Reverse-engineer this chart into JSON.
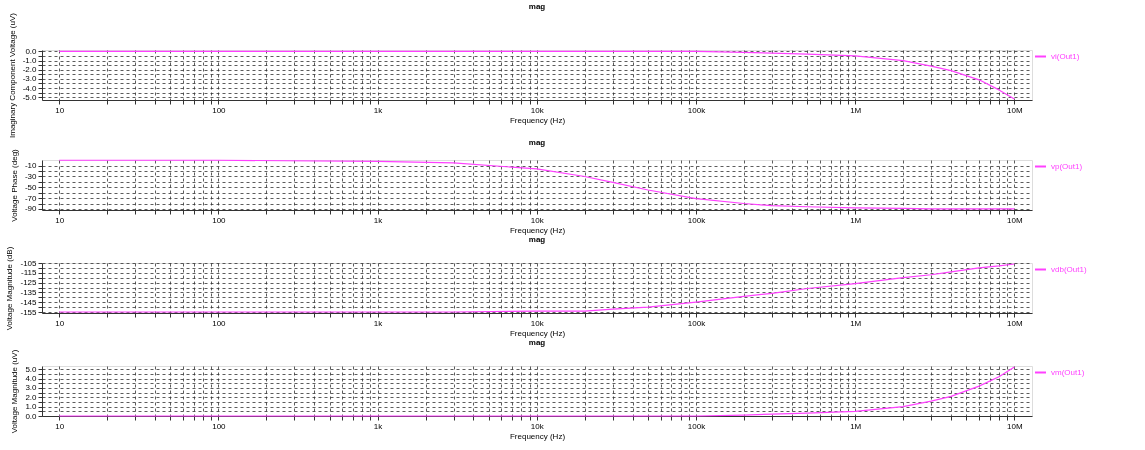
{
  "chart_data": [
    {
      "type": "line",
      "title": "mag",
      "xlabel": "Frequency (Hz)",
      "ylabel": "Imaginary Component Voltage (uV)",
      "log": "x",
      "grid": true,
      "legend": "right",
      "x": [
        10,
        100,
        1000,
        3000,
        10000,
        20000,
        30000,
        50000,
        100000,
        200000,
        300000,
        500000,
        1000000,
        2000000,
        3000000,
        4000000,
        6000000,
        8000000,
        10000000
      ],
      "series": [
        {
          "name": "vi(Out1)",
          "color": "#ff40ff",
          "values": [
            0.0,
            0.0,
            0.0,
            0.0,
            0.0,
            0.0,
            0.0,
            0.0,
            0.0,
            -0.1,
            -0.2,
            -0.3,
            -0.5,
            -1.0,
            -1.6,
            -2.1,
            -3.1,
            -4.2,
            -5.2
          ]
        }
      ],
      "xlim": [
        7.8,
        12900000
      ],
      "xticks": [
        {
          "value": 10,
          "label": "10"
        },
        {
          "value": 20,
          "label": null
        },
        {
          "value": 30,
          "label": null
        },
        {
          "value": 40,
          "label": null
        },
        {
          "value": 50,
          "label": null
        },
        {
          "value": 60,
          "label": null
        },
        {
          "value": 70,
          "label": null
        },
        {
          "value": 80,
          "label": null
        },
        {
          "value": 90,
          "label": null
        },
        {
          "value": 100,
          "label": "100"
        },
        {
          "value": 200,
          "label": null
        },
        {
          "value": 300,
          "label": null
        },
        {
          "value": 400,
          "label": null
        },
        {
          "value": 500,
          "label": null
        },
        {
          "value": 600,
          "label": null
        },
        {
          "value": 700,
          "label": null
        },
        {
          "value": 800,
          "label": null
        },
        {
          "value": 900,
          "label": null
        },
        {
          "value": 1000,
          "label": "1k"
        },
        {
          "value": 2000,
          "label": null
        },
        {
          "value": 3000,
          "label": null
        },
        {
          "value": 4000,
          "label": null
        },
        {
          "value": 5000,
          "label": null
        },
        {
          "value": 6000,
          "label": null
        },
        {
          "value": 7000,
          "label": null
        },
        {
          "value": 8000,
          "label": null
        },
        {
          "value": 9000,
          "label": null
        },
        {
          "value": 10000,
          "label": "10k"
        },
        {
          "value": 20000,
          "label": null
        },
        {
          "value": 30000,
          "label": null
        },
        {
          "value": 40000,
          "label": null
        },
        {
          "value": 50000,
          "label": null
        },
        {
          "value": 60000,
          "label": null
        },
        {
          "value": 70000,
          "label": null
        },
        {
          "value": 80000,
          "label": null
        },
        {
          "value": 90000,
          "label": null
        },
        {
          "value": 100000,
          "label": "100k"
        },
        {
          "value": 200000,
          "label": null
        },
        {
          "value": 300000,
          "label": null
        },
        {
          "value": 400000,
          "label": null
        },
        {
          "value": 500000,
          "label": null
        },
        {
          "value": 600000,
          "label": null
        },
        {
          "value": 700000,
          "label": null
        },
        {
          "value": 800000,
          "label": null
        },
        {
          "value": 900000,
          "label": null
        },
        {
          "value": 1000000,
          "label": "1M"
        },
        {
          "value": 2000000,
          "label": null
        },
        {
          "value": 3000000,
          "label": null
        },
        {
          "value": 4000000,
          "label": null
        },
        {
          "value": 5000000,
          "label": null
        },
        {
          "value": 6000000,
          "label": null
        },
        {
          "value": 7000000,
          "label": null
        },
        {
          "value": 8000000,
          "label": null
        },
        {
          "value": 9000000,
          "label": null
        },
        {
          "value": 10000000,
          "label": "10M"
        }
      ],
      "ylim": [
        -5.3,
        0.15
      ],
      "yticks": [
        {
          "value": 0,
          "label": "0.0"
        },
        {
          "value": -0.5,
          "label": null
        },
        {
          "value": -1,
          "label": "-1.0"
        },
        {
          "value": -1.5,
          "label": null
        },
        {
          "value": -2,
          "label": "-2.0"
        },
        {
          "value": -2.5,
          "label": null
        },
        {
          "value": -3,
          "label": "-3.0"
        },
        {
          "value": -3.5,
          "label": null
        },
        {
          "value": -4,
          "label": "-4.0"
        },
        {
          "value": -4.5,
          "label": null
        },
        {
          "value": -5,
          "label": "-5.0"
        }
      ]
    },
    {
      "type": "line",
      "title": "mag",
      "xlabel": "Frequency (Hz)",
      "ylabel": "Voltage Phase (deg)",
      "log": "x",
      "grid": true,
      "legend": "right",
      "x": [
        10,
        100,
        1000,
        3000,
        10000,
        20000,
        30000,
        50000,
        100000,
        200000,
        300000,
        500000,
        1000000,
        2000000,
        3000000,
        4000000,
        6000000,
        8000000,
        10000000
      ],
      "series": [
        {
          "name": "vp(Out1)",
          "color": "#ff40ff",
          "values": [
            0,
            0,
            -2,
            -5,
            -16,
            -30,
            -41,
            -55,
            -71,
            -80,
            -84,
            -86,
            -88,
            -89,
            -90,
            -90,
            -90,
            -90,
            -90
          ]
        }
      ],
      "xlim": [
        7.8,
        12900000
      ],
      "xticks": [
        {
          "value": 10,
          "label": "10"
        },
        {
          "value": 20,
          "label": null
        },
        {
          "value": 30,
          "label": null
        },
        {
          "value": 40,
          "label": null
        },
        {
          "value": 50,
          "label": null
        },
        {
          "value": 60,
          "label": null
        },
        {
          "value": 70,
          "label": null
        },
        {
          "value": 80,
          "label": null
        },
        {
          "value": 90,
          "label": null
        },
        {
          "value": 100,
          "label": "100"
        },
        {
          "value": 200,
          "label": null
        },
        {
          "value": 300,
          "label": null
        },
        {
          "value": 400,
          "label": null
        },
        {
          "value": 500,
          "label": null
        },
        {
          "value": 600,
          "label": null
        },
        {
          "value": 700,
          "label": null
        },
        {
          "value": 800,
          "label": null
        },
        {
          "value": 900,
          "label": null
        },
        {
          "value": 1000,
          "label": "1k"
        },
        {
          "value": 2000,
          "label": null
        },
        {
          "value": 3000,
          "label": null
        },
        {
          "value": 4000,
          "label": null
        },
        {
          "value": 5000,
          "label": null
        },
        {
          "value": 6000,
          "label": null
        },
        {
          "value": 7000,
          "label": null
        },
        {
          "value": 8000,
          "label": null
        },
        {
          "value": 9000,
          "label": null
        },
        {
          "value": 10000,
          "label": "10k"
        },
        {
          "value": 20000,
          "label": null
        },
        {
          "value": 30000,
          "label": null
        },
        {
          "value": 40000,
          "label": null
        },
        {
          "value": 50000,
          "label": null
        },
        {
          "value": 60000,
          "label": null
        },
        {
          "value": 70000,
          "label": null
        },
        {
          "value": 80000,
          "label": null
        },
        {
          "value": 90000,
          "label": null
        },
        {
          "value": 100000,
          "label": "100k"
        },
        {
          "value": 200000,
          "label": null
        },
        {
          "value": 300000,
          "label": null
        },
        {
          "value": 400000,
          "label": null
        },
        {
          "value": 500000,
          "label": null
        },
        {
          "value": 600000,
          "label": null
        },
        {
          "value": 700000,
          "label": null
        },
        {
          "value": 800000,
          "label": null
        },
        {
          "value": 900000,
          "label": null
        },
        {
          "value": 1000000,
          "label": "1M"
        },
        {
          "value": 2000000,
          "label": null
        },
        {
          "value": 3000000,
          "label": null
        },
        {
          "value": 4000000,
          "label": null
        },
        {
          "value": 5000000,
          "label": null
        },
        {
          "value": 6000000,
          "label": null
        },
        {
          "value": 7000000,
          "label": null
        },
        {
          "value": 8000000,
          "label": null
        },
        {
          "value": 9000000,
          "label": null
        },
        {
          "value": 10000000,
          "label": "10M"
        }
      ],
      "ylim": [
        -92,
        0.5
      ],
      "yticks": [
        -10,
        {
          "value": -20,
          "label": null
        },
        -30,
        {
          "value": -40,
          "label": null
        },
        -50,
        {
          "value": -60,
          "label": null
        },
        -70,
        {
          "value": -80,
          "label": null
        },
        -90
      ]
    },
    {
      "type": "line",
      "title": "mag",
      "xlabel": "Frequency (Hz)",
      "ylabel": "Voltage Magnitude (dB)",
      "log": "x",
      "grid": true,
      "legend": "right",
      "x": [
        10,
        100,
        1000,
        3000,
        10000,
        20000,
        30000,
        50000,
        100000,
        200000,
        300000,
        500000,
        1000000,
        2000000,
        3000000,
        4000000,
        6000000,
        8000000,
        10000000
      ],
      "series": [
        {
          "name": "vdb(Out1)",
          "color": "#ff40ff",
          "values": [
            -155,
            -155,
            -155,
            -155,
            -154,
            -154,
            -152,
            -150,
            -145,
            -139,
            -136,
            -131,
            -126,
            -120,
            -117,
            -114,
            -110,
            -108,
            -106
          ]
        }
      ],
      "xlim": [
        7.8,
        12900000
      ],
      "xticks": [
        {
          "value": 10,
          "label": "10"
        },
        {
          "value": 20,
          "label": null
        },
        {
          "value": 30,
          "label": null
        },
        {
          "value": 40,
          "label": null
        },
        {
          "value": 50,
          "label": null
        },
        {
          "value": 60,
          "label": null
        },
        {
          "value": 70,
          "label": null
        },
        {
          "value": 80,
          "label": null
        },
        {
          "value": 90,
          "label": null
        },
        {
          "value": 100,
          "label": "100"
        },
        {
          "value": 200,
          "label": null
        },
        {
          "value": 300,
          "label": null
        },
        {
          "value": 400,
          "label": null
        },
        {
          "value": 500,
          "label": null
        },
        {
          "value": 600,
          "label": null
        },
        {
          "value": 700,
          "label": null
        },
        {
          "value": 800,
          "label": null
        },
        {
          "value": 900,
          "label": null
        },
        {
          "value": 1000,
          "label": "1k"
        },
        {
          "value": 2000,
          "label": null
        },
        {
          "value": 3000,
          "label": null
        },
        {
          "value": 4000,
          "label": null
        },
        {
          "value": 5000,
          "label": null
        },
        {
          "value": 6000,
          "label": null
        },
        {
          "value": 7000,
          "label": null
        },
        {
          "value": 8000,
          "label": null
        },
        {
          "value": 9000,
          "label": null
        },
        {
          "value": 10000,
          "label": "10k"
        },
        {
          "value": 20000,
          "label": null
        },
        {
          "value": 30000,
          "label": null
        },
        {
          "value": 40000,
          "label": null
        },
        {
          "value": 50000,
          "label": null
        },
        {
          "value": 60000,
          "label": null
        },
        {
          "value": 70000,
          "label": null
        },
        {
          "value": 80000,
          "label": null
        },
        {
          "value": 90000,
          "label": null
        },
        {
          "value": 100000,
          "label": "100k"
        },
        {
          "value": 200000,
          "label": null
        },
        {
          "value": 300000,
          "label": null
        },
        {
          "value": 400000,
          "label": null
        },
        {
          "value": 500000,
          "label": null
        },
        {
          "value": 600000,
          "label": null
        },
        {
          "value": 700000,
          "label": null
        },
        {
          "value": 800000,
          "label": null
        },
        {
          "value": 900000,
          "label": null
        },
        {
          "value": 1000000,
          "label": "1M"
        },
        {
          "value": 2000000,
          "label": null
        },
        {
          "value": 3000000,
          "label": null
        },
        {
          "value": 4000000,
          "label": null
        },
        {
          "value": 5000000,
          "label": null
        },
        {
          "value": 6000000,
          "label": null
        },
        {
          "value": 7000000,
          "label": null
        },
        {
          "value": 8000000,
          "label": null
        },
        {
          "value": 9000000,
          "label": null
        },
        {
          "value": 10000000,
          "label": "10M"
        }
      ],
      "ylim": [
        -156,
        -105
      ],
      "yticks": [
        -105,
        {
          "value": -110,
          "label": null
        },
        -115,
        {
          "value": -120,
          "label": null
        },
        -125,
        {
          "value": -130,
          "label": null
        },
        -135,
        {
          "value": -140,
          "label": null
        },
        -145,
        {
          "value": -150,
          "label": null
        },
        -155
      ]
    },
    {
      "type": "line",
      "title": "mag",
      "xlabel": "Frequency (Hz)",
      "ylabel": "Voltage Magnitude (uV)",
      "log": "x",
      "grid": true,
      "legend": "right",
      "x": [
        10,
        100,
        1000,
        3000,
        10000,
        20000,
        30000,
        50000,
        100000,
        200000,
        300000,
        500000,
        1000000,
        2000000,
        3000000,
        4000000,
        6000000,
        8000000,
        10000000
      ],
      "series": [
        {
          "name": "vm(Out1)",
          "color": "#ff40ff",
          "values": [
            0.0,
            0.0,
            0.0,
            0.0,
            0.0,
            0.0,
            0.0,
            0.0,
            0.0,
            0.1,
            0.2,
            0.3,
            0.5,
            1.0,
            1.6,
            2.1,
            3.2,
            4.2,
            5.25
          ]
        }
      ],
      "xlim": [
        7.8,
        12900000
      ],
      "xticks": [
        {
          "value": 10,
          "label": "10"
        },
        {
          "value": 20,
          "label": null
        },
        {
          "value": 30,
          "label": null
        },
        {
          "value": 40,
          "label": null
        },
        {
          "value": 50,
          "label": null
        },
        {
          "value": 60,
          "label": null
        },
        {
          "value": 70,
          "label": null
        },
        {
          "value": 80,
          "label": null
        },
        {
          "value": 90,
          "label": null
        },
        {
          "value": 100,
          "label": "100"
        },
        {
          "value": 200,
          "label": null
        },
        {
          "value": 300,
          "label": null
        },
        {
          "value": 400,
          "label": null
        },
        {
          "value": 500,
          "label": null
        },
        {
          "value": 600,
          "label": null
        },
        {
          "value": 700,
          "label": null
        },
        {
          "value": 800,
          "label": null
        },
        {
          "value": 900,
          "label": null
        },
        {
          "value": 1000,
          "label": "1k"
        },
        {
          "value": 2000,
          "label": null
        },
        {
          "value": 3000,
          "label": null
        },
        {
          "value": 4000,
          "label": null
        },
        {
          "value": 5000,
          "label": null
        },
        {
          "value": 6000,
          "label": null
        },
        {
          "value": 7000,
          "label": null
        },
        {
          "value": 8000,
          "label": null
        },
        {
          "value": 9000,
          "label": null
        },
        {
          "value": 10000,
          "label": "10k"
        },
        {
          "value": 20000,
          "label": null
        },
        {
          "value": 30000,
          "label": null
        },
        {
          "value": 40000,
          "label": null
        },
        {
          "value": 50000,
          "label": null
        },
        {
          "value": 60000,
          "label": null
        },
        {
          "value": 70000,
          "label": null
        },
        {
          "value": 80000,
          "label": null
        },
        {
          "value": 90000,
          "label": null
        },
        {
          "value": 100000,
          "label": "100k"
        },
        {
          "value": 200000,
          "label": null
        },
        {
          "value": 300000,
          "label": null
        },
        {
          "value": 400000,
          "label": null
        },
        {
          "value": 500000,
          "label": null
        },
        {
          "value": 600000,
          "label": null
        },
        {
          "value": 700000,
          "label": null
        },
        {
          "value": 800000,
          "label": null
        },
        {
          "value": 900000,
          "label": null
        },
        {
          "value": 1000000,
          "label": "1M"
        },
        {
          "value": 2000000,
          "label": null
        },
        {
          "value": 3000000,
          "label": null
        },
        {
          "value": 4000000,
          "label": null
        },
        {
          "value": 5000000,
          "label": null
        },
        {
          "value": 6000000,
          "label": null
        },
        {
          "value": 7000000,
          "label": null
        },
        {
          "value": 8000000,
          "label": null
        },
        {
          "value": 9000000,
          "label": null
        },
        {
          "value": 10000000,
          "label": "10M"
        }
      ],
      "ylim": [
        0,
        5.35
      ],
      "yticks": [
        {
          "value": 0,
          "label": "0.0"
        },
        {
          "value": 0.5,
          "label": null
        },
        {
          "value": 1,
          "label": "1.0"
        },
        {
          "value": 1.5,
          "label": null
        },
        {
          "value": 2,
          "label": "2.0"
        },
        {
          "value": 2.5,
          "label": null
        },
        {
          "value": 3,
          "label": "3.0"
        },
        {
          "value": 3.5,
          "label": null
        },
        {
          "value": 4,
          "label": "4.0"
        },
        {
          "value": 4.5,
          "label": null
        },
        {
          "value": 5,
          "label": "5.0"
        }
      ]
    }
  ]
}
